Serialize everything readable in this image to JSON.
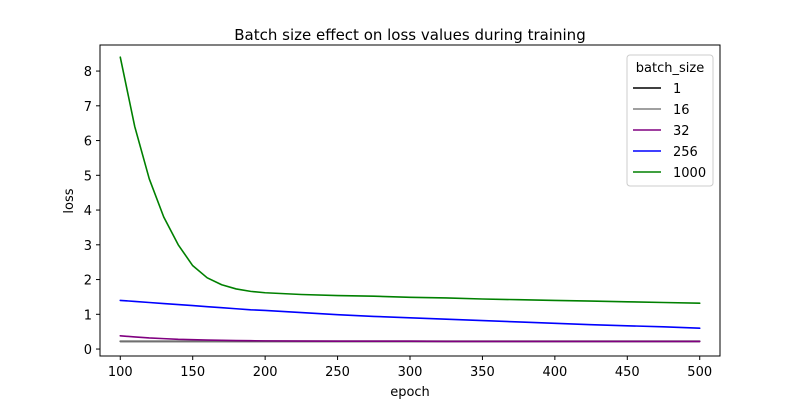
{
  "chart_data": {
    "type": "line",
    "title": "Batch size effect on loss values during training",
    "xlabel": "epoch",
    "ylabel": "loss",
    "xlim": [
      86,
      514
    ],
    "ylim": [
      -0.2,
      8.75
    ],
    "x_ticks": [
      100,
      150,
      200,
      250,
      300,
      350,
      400,
      450,
      500
    ],
    "y_ticks": [
      0,
      1,
      2,
      3,
      4,
      5,
      6,
      7,
      8
    ],
    "grid": false,
    "legend": {
      "title": "batch_size",
      "placement": "top-right"
    },
    "x": [
      100,
      110,
      120,
      130,
      140,
      150,
      160,
      170,
      180,
      190,
      200,
      225,
      250,
      275,
      300,
      325,
      350,
      375,
      400,
      425,
      450,
      475,
      500
    ],
    "series": [
      {
        "name": "1",
        "color": "#000000",
        "values": [
          0.22,
          0.22,
          0.22,
          0.22,
          0.22,
          0.22,
          0.22,
          0.22,
          0.22,
          0.22,
          0.22,
          0.22,
          0.22,
          0.22,
          0.22,
          0.22,
          0.22,
          0.22,
          0.22,
          0.22,
          0.22,
          0.22,
          0.22
        ]
      },
      {
        "name": "16",
        "color": "#808080",
        "values": [
          0.23,
          0.23,
          0.23,
          0.23,
          0.23,
          0.23,
          0.23,
          0.23,
          0.23,
          0.23,
          0.23,
          0.23,
          0.23,
          0.23,
          0.23,
          0.23,
          0.23,
          0.23,
          0.23,
          0.23,
          0.23,
          0.23,
          0.23
        ]
      },
      {
        "name": "32",
        "color": "#800080",
        "values": [
          0.38,
          0.35,
          0.32,
          0.3,
          0.28,
          0.27,
          0.26,
          0.25,
          0.245,
          0.24,
          0.235,
          0.23,
          0.225,
          0.225,
          0.225,
          0.22,
          0.22,
          0.22,
          0.22,
          0.22,
          0.22,
          0.22,
          0.22
        ]
      },
      {
        "name": "256",
        "color": "#0000ff",
        "values": [
          1.4,
          1.37,
          1.34,
          1.31,
          1.28,
          1.25,
          1.22,
          1.19,
          1.16,
          1.13,
          1.11,
          1.05,
          0.99,
          0.94,
          0.9,
          0.86,
          0.82,
          0.78,
          0.74,
          0.7,
          0.67,
          0.64,
          0.6
        ]
      },
      {
        "name": "1000",
        "color": "#008000",
        "values": [
          8.4,
          6.4,
          4.9,
          3.8,
          3.0,
          2.4,
          2.05,
          1.85,
          1.73,
          1.66,
          1.62,
          1.57,
          1.54,
          1.52,
          1.49,
          1.47,
          1.44,
          1.42,
          1.4,
          1.38,
          1.36,
          1.34,
          1.32
        ]
      }
    ]
  }
}
